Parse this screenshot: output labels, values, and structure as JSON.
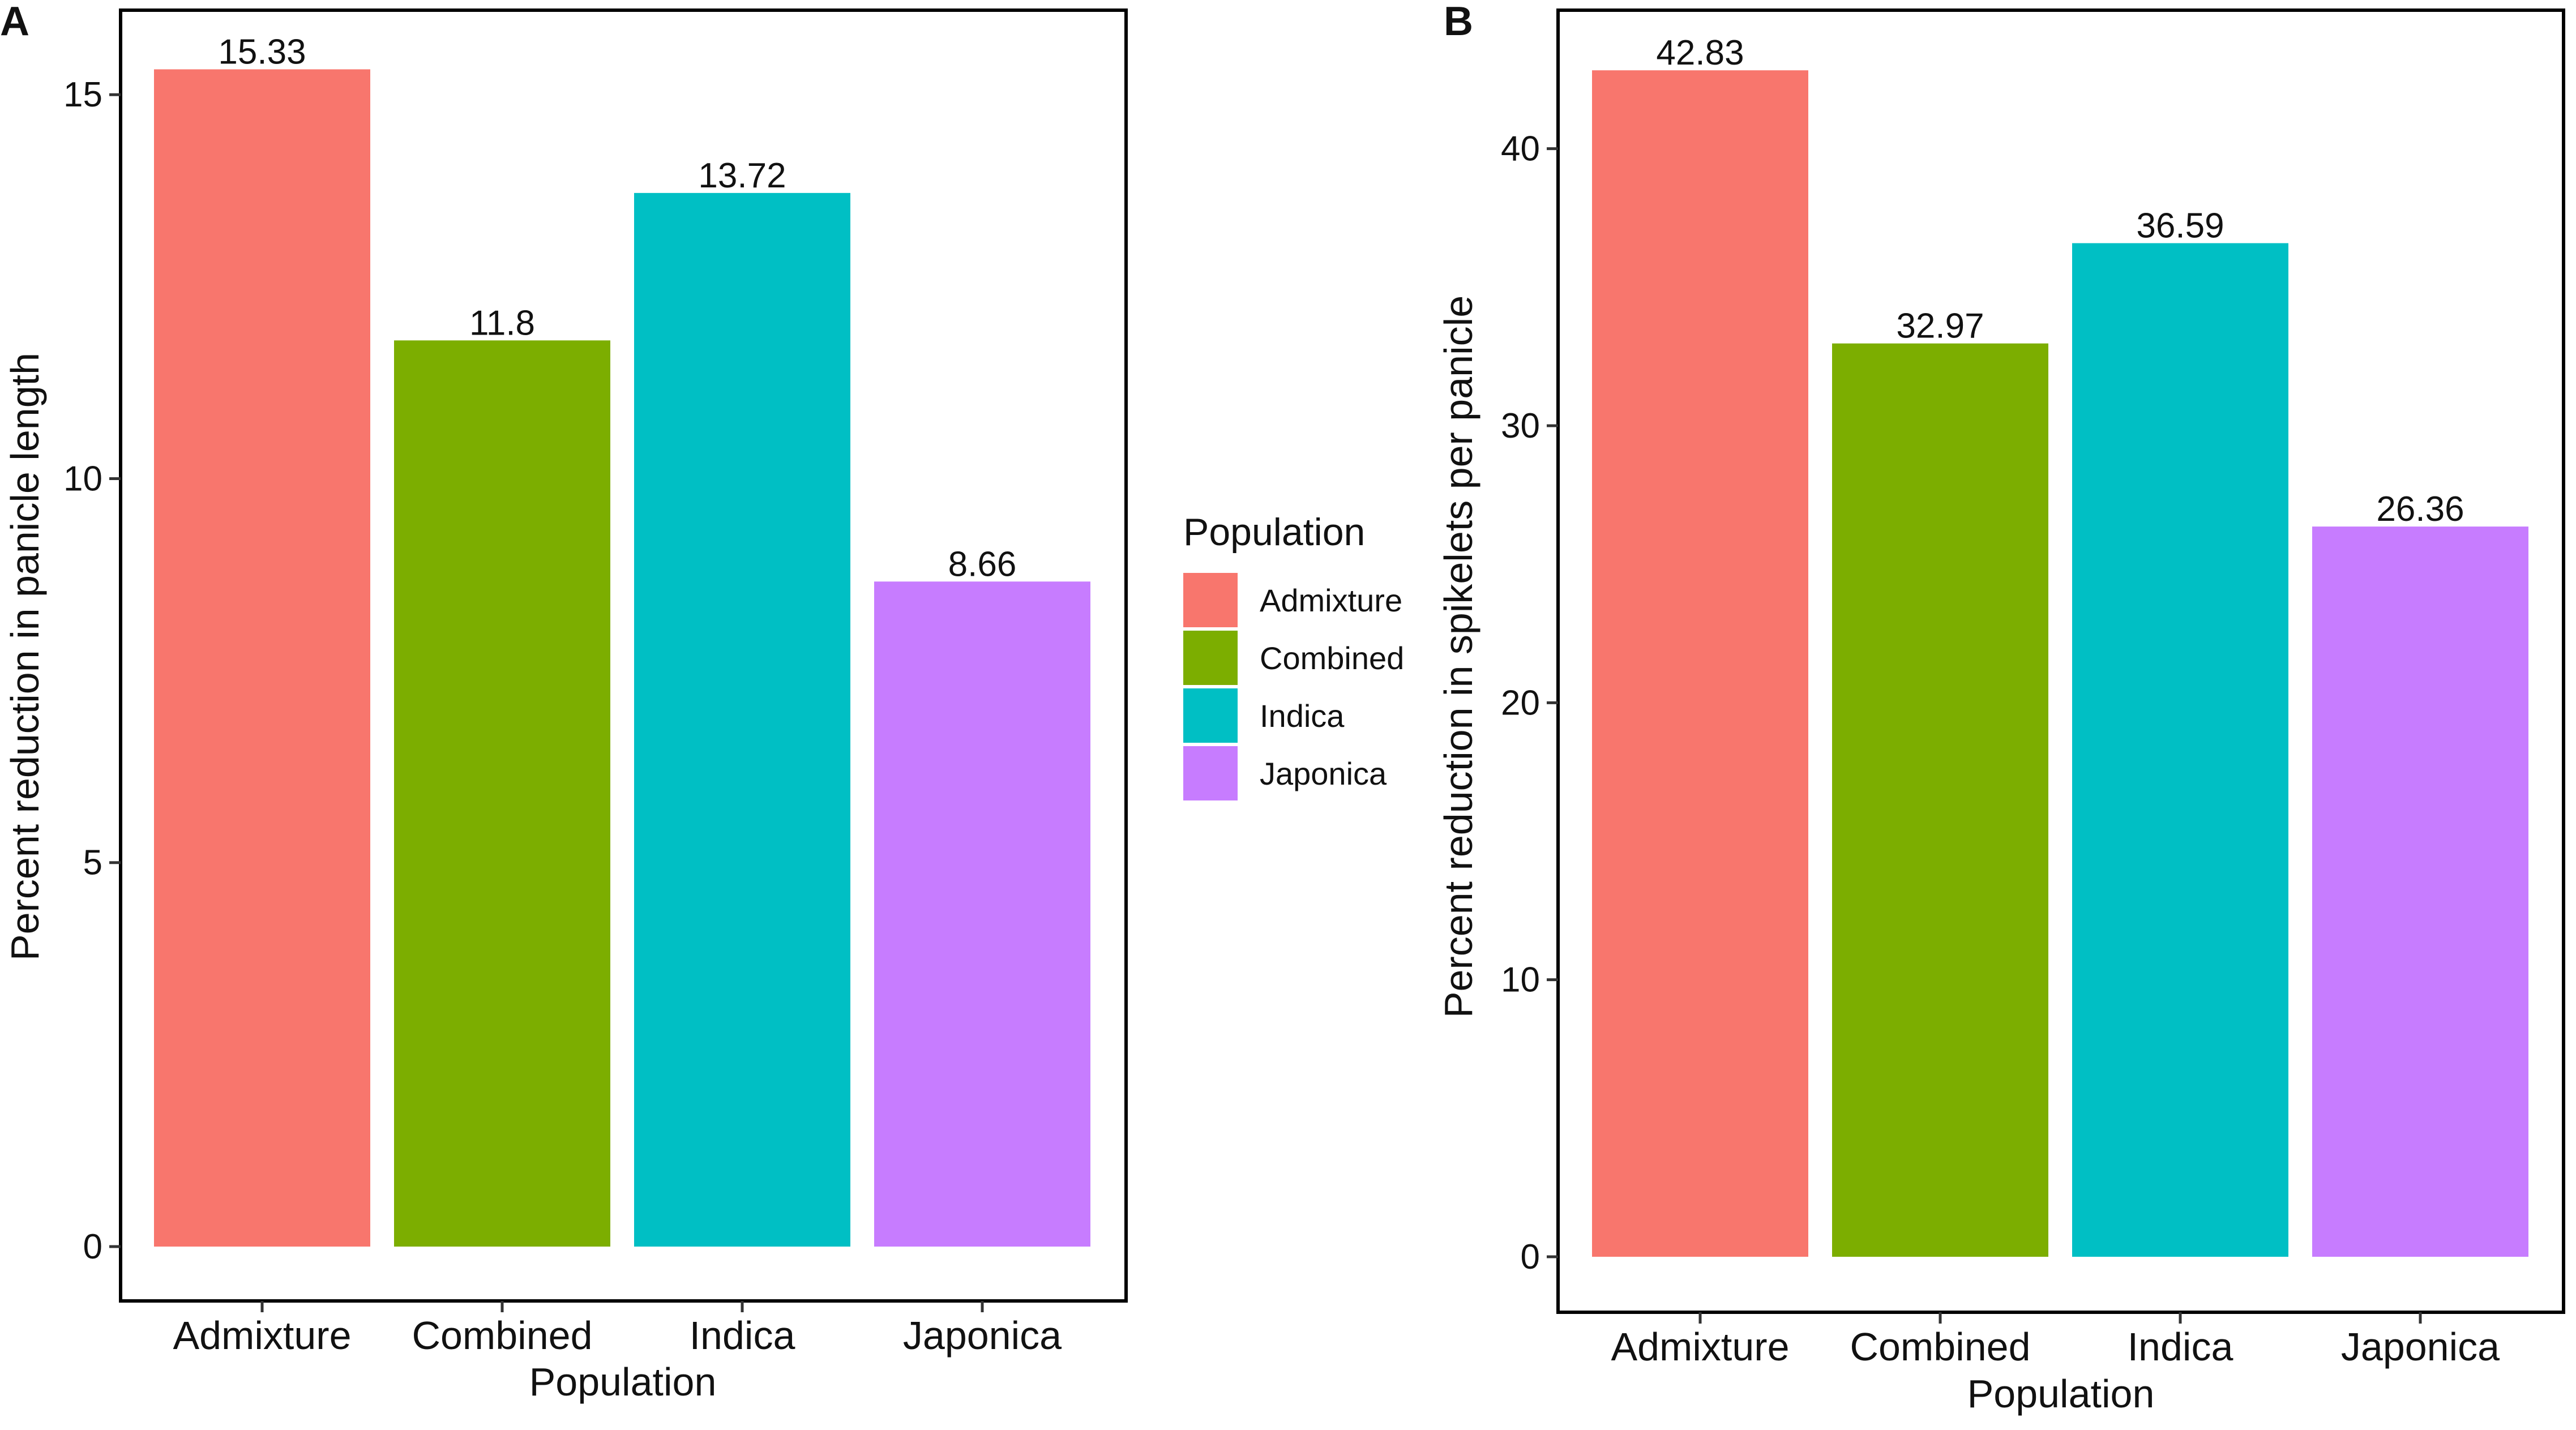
{
  "legend": {
    "title": "Population",
    "entries": [
      {
        "label": "Admixture",
        "color": "#F8766D"
      },
      {
        "label": "Combined",
        "color": "#7CAE00"
      },
      {
        "label": "Indica",
        "color": "#00BFC4"
      },
      {
        "label": "Japonica",
        "color": "#C77CFF"
      }
    ]
  },
  "chart_data": [
    {
      "panel": "A",
      "type": "bar",
      "title": "",
      "categories": [
        "Admixture",
        "Combined",
        "Indica",
        "Japonica"
      ],
      "values": [
        15.33,
        11.8,
        13.72,
        8.66
      ],
      "data_labels": [
        "15.33",
        "11.8",
        "13.72",
        "8.66"
      ],
      "colors": [
        "#F8766D",
        "#7CAE00",
        "#00BFC4",
        "#C77CFF"
      ],
      "xlabel": "Population",
      "ylabel": "Percent reduction in panicle length",
      "ylim": [
        0,
        16.1
      ],
      "yticks": [
        0,
        5,
        10,
        15
      ],
      "grid": false
    },
    {
      "panel": "B",
      "type": "bar",
      "title": "",
      "categories": [
        "Admixture",
        "Combined",
        "Indica",
        "Japonica"
      ],
      "values": [
        42.83,
        32.97,
        36.59,
        26.36
      ],
      "data_labels": [
        "42.83",
        "32.97",
        "36.59",
        "26.36"
      ],
      "colors": [
        "#F8766D",
        "#7CAE00",
        "#00BFC4",
        "#C77CFF"
      ],
      "xlabel": "Population",
      "ylabel": "Percent reduction in spikelets per panicle",
      "ylim": [
        0,
        45
      ],
      "yticks": [
        0,
        10,
        20,
        30,
        40
      ],
      "grid": false
    }
  ]
}
